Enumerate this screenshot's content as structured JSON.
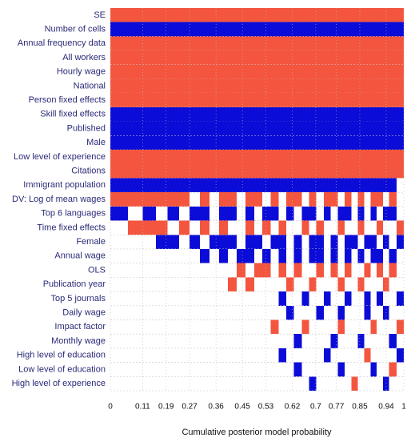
{
  "chart_data": {
    "type": "bma-image",
    "xlabel": "Cumulative posterior model probability",
    "xlim": [
      0,
      1
    ],
    "xticks": [
      0,
      0.11,
      0.19,
      0.27,
      0.36,
      0.45,
      0.53,
      0.62,
      0.7,
      0.77,
      0.85,
      0.94,
      1
    ],
    "pos_color": "#f4553f",
    "neg_color": "#0c0cd8",
    "pmp": [
      0.06,
      0.05,
      0.045,
      0.04,
      0.04,
      0.035,
      0.035,
      0.033,
      0.032,
      0.031,
      0.03,
      0.03,
      0.029,
      0.028,
      0.028,
      0.027,
      0.027,
      0.026,
      0.026,
      0.025,
      0.025,
      0.025,
      0.024,
      0.024,
      0.023,
      0.023,
      0.022,
      0.022,
      0.022,
      0.021,
      0.021,
      0.021,
      0.025,
      0.025
    ],
    "series": [
      {
        "name": "SE",
        "values": [
          1,
          1,
          1,
          1,
          1,
          1,
          1,
          1,
          1,
          1,
          1,
          1,
          1,
          1,
          1,
          1,
          1,
          1,
          1,
          1,
          1,
          1,
          1,
          1,
          1,
          1,
          1,
          1,
          1,
          1,
          1,
          1,
          1,
          1
        ]
      },
      {
        "name": "Number of cells",
        "values": [
          -1,
          -1,
          -1,
          -1,
          -1,
          -1,
          -1,
          -1,
          -1,
          -1,
          -1,
          -1,
          -1,
          -1,
          -1,
          -1,
          -1,
          -1,
          -1,
          -1,
          -1,
          -1,
          -1,
          -1,
          -1,
          -1,
          -1,
          -1,
          -1,
          -1,
          -1,
          -1,
          -1,
          -1
        ]
      },
      {
        "name": "Annual frequency data",
        "values": [
          1,
          1,
          1,
          1,
          1,
          1,
          1,
          1,
          1,
          1,
          1,
          1,
          1,
          1,
          1,
          1,
          1,
          1,
          1,
          1,
          1,
          1,
          1,
          1,
          1,
          1,
          1,
          1,
          1,
          1,
          1,
          1,
          1,
          1
        ]
      },
      {
        "name": "All workers",
        "values": [
          1,
          1,
          1,
          1,
          1,
          1,
          1,
          1,
          1,
          1,
          1,
          1,
          1,
          1,
          1,
          1,
          1,
          1,
          1,
          1,
          1,
          1,
          1,
          1,
          1,
          1,
          1,
          1,
          1,
          1,
          1,
          1,
          1,
          1
        ]
      },
      {
        "name": "Hourly wage",
        "values": [
          1,
          1,
          1,
          1,
          1,
          1,
          1,
          1,
          1,
          1,
          1,
          1,
          1,
          1,
          1,
          1,
          1,
          1,
          1,
          1,
          1,
          1,
          1,
          1,
          1,
          1,
          1,
          1,
          1,
          1,
          1,
          1,
          1,
          1
        ]
      },
      {
        "name": "National",
        "values": [
          1,
          1,
          1,
          1,
          1,
          1,
          1,
          1,
          1,
          1,
          1,
          1,
          1,
          1,
          1,
          1,
          1,
          1,
          1,
          1,
          1,
          1,
          1,
          1,
          1,
          1,
          1,
          1,
          1,
          1,
          1,
          1,
          1,
          1
        ]
      },
      {
        "name": "Person fixed effects",
        "values": [
          1,
          1,
          1,
          1,
          1,
          1,
          1,
          1,
          1,
          1,
          1,
          1,
          1,
          1,
          1,
          1,
          1,
          1,
          1,
          1,
          1,
          1,
          1,
          1,
          1,
          1,
          1,
          1,
          1,
          1,
          1,
          1,
          1,
          1
        ]
      },
      {
        "name": "Skill fixed effects",
        "values": [
          -1,
          -1,
          -1,
          -1,
          -1,
          -1,
          -1,
          -1,
          -1,
          -1,
          -1,
          -1,
          -1,
          -1,
          -1,
          -1,
          -1,
          -1,
          -1,
          -1,
          -1,
          -1,
          -1,
          -1,
          -1,
          -1,
          -1,
          -1,
          -1,
          -1,
          -1,
          -1,
          -1,
          -1
        ]
      },
      {
        "name": "Published",
        "values": [
          -1,
          -1,
          -1,
          -1,
          -1,
          -1,
          -1,
          -1,
          -1,
          -1,
          -1,
          -1,
          -1,
          -1,
          -1,
          -1,
          -1,
          -1,
          -1,
          -1,
          -1,
          -1,
          -1,
          -1,
          -1,
          -1,
          -1,
          -1,
          -1,
          -1,
          -1,
          -1,
          -1,
          -1
        ]
      },
      {
        "name": "Male",
        "values": [
          -1,
          -1,
          -1,
          -1,
          -1,
          -1,
          -1,
          -1,
          -1,
          -1,
          -1,
          -1,
          -1,
          -1,
          -1,
          -1,
          -1,
          -1,
          -1,
          -1,
          -1,
          -1,
          -1,
          -1,
          -1,
          -1,
          -1,
          -1,
          -1,
          -1,
          -1,
          -1,
          -1,
          -1
        ]
      },
      {
        "name": "Low level of experience",
        "values": [
          1,
          1,
          1,
          1,
          1,
          1,
          1,
          1,
          1,
          1,
          1,
          1,
          1,
          1,
          1,
          1,
          1,
          1,
          1,
          1,
          1,
          1,
          1,
          1,
          1,
          1,
          1,
          1,
          1,
          1,
          1,
          1,
          1,
          1
        ]
      },
      {
        "name": "Citations",
        "values": [
          1,
          1,
          1,
          1,
          1,
          1,
          1,
          1,
          1,
          1,
          1,
          1,
          1,
          1,
          1,
          1,
          1,
          1,
          1,
          1,
          1,
          1,
          1,
          1,
          1,
          1,
          1,
          1,
          1,
          1,
          1,
          1,
          1,
          1
        ]
      },
      {
        "name": "Immigrant population",
        "values": [
          -1,
          -1,
          -1,
          -1,
          -1,
          -1,
          -1,
          -1,
          -1,
          -1,
          -1,
          -1,
          -1,
          -1,
          -1,
          -1,
          -1,
          -1,
          -1,
          -1,
          -1,
          -1,
          -1,
          -1,
          -1,
          -1,
          -1,
          -1,
          -1,
          -1,
          -1,
          -1,
          -1,
          0
        ]
      },
      {
        "name": "DV: Log of mean wages",
        "values": [
          1,
          1,
          1,
          1,
          1,
          1,
          0,
          1,
          0,
          1,
          1,
          0,
          1,
          1,
          0,
          1,
          0,
          1,
          1,
          0,
          1,
          0,
          1,
          1,
          0,
          1,
          0,
          1,
          0,
          1,
          1,
          0,
          1,
          0
        ]
      },
      {
        "name": "Top 6 languages",
        "values": [
          -1,
          0,
          -1,
          0,
          -1,
          0,
          -1,
          -1,
          0,
          -1,
          -1,
          0,
          -1,
          0,
          -1,
          -1,
          0,
          -1,
          0,
          -1,
          -1,
          0,
          -1,
          0,
          -1,
          -1,
          0,
          -1,
          0,
          -1,
          0,
          -1,
          -1,
          0
        ]
      },
      {
        "name": "Time fixed effects",
        "values": [
          0,
          1,
          1,
          1,
          0,
          1,
          0,
          1,
          0,
          1,
          0,
          0,
          1,
          0,
          1,
          0,
          1,
          0,
          0,
          1,
          0,
          1,
          0,
          0,
          1,
          0,
          0,
          1,
          0,
          0,
          1,
          0,
          0,
          1
        ]
      },
      {
        "name": "Female",
        "values": [
          0,
          0,
          0,
          -1,
          -1,
          0,
          -1,
          0,
          -1,
          -1,
          -1,
          0,
          -1,
          -1,
          0,
          -1,
          -1,
          0,
          -1,
          0,
          -1,
          -1,
          0,
          -1,
          0,
          -1,
          -1,
          0,
          -1,
          -1,
          0,
          -1,
          0,
          -1
        ]
      },
      {
        "name": "Annual wage",
        "values": [
          0,
          0,
          0,
          0,
          0,
          0,
          0,
          -1,
          0,
          -1,
          0,
          -1,
          -1,
          0,
          -1,
          0,
          -1,
          0,
          -1,
          0,
          -1,
          -1,
          0,
          -1,
          0,
          -1,
          0,
          -1,
          0,
          -1,
          -1,
          0,
          -1,
          0
        ]
      },
      {
        "name": "OLS",
        "values": [
          0,
          0,
          0,
          0,
          0,
          0,
          0,
          0,
          0,
          0,
          0,
          1,
          0,
          1,
          1,
          0,
          1,
          0,
          1,
          0,
          0,
          1,
          0,
          1,
          0,
          1,
          0,
          0,
          1,
          0,
          1,
          0,
          1,
          0
        ]
      },
      {
        "name": "Publication year",
        "values": [
          0,
          0,
          0,
          0,
          0,
          0,
          0,
          0,
          0,
          0,
          1,
          0,
          1,
          0,
          0,
          0,
          0,
          1,
          0,
          0,
          1,
          0,
          0,
          0,
          1,
          0,
          0,
          1,
          0,
          0,
          0,
          1,
          0,
          0
        ]
      },
      {
        "name": "Top 5 journals",
        "values": [
          0,
          0,
          0,
          0,
          0,
          0,
          0,
          0,
          0,
          0,
          0,
          0,
          0,
          0,
          0,
          0,
          -1,
          0,
          0,
          -1,
          0,
          0,
          -1,
          0,
          0,
          -1,
          0,
          0,
          -1,
          0,
          -1,
          0,
          0,
          -1
        ]
      },
      {
        "name": "Daily wage",
        "values": [
          0,
          0,
          0,
          0,
          0,
          0,
          0,
          0,
          0,
          0,
          0,
          0,
          0,
          0,
          0,
          0,
          0,
          -1,
          0,
          0,
          0,
          -1,
          0,
          0,
          -1,
          0,
          0,
          0,
          -1,
          0,
          0,
          -1,
          0,
          0
        ]
      },
      {
        "name": "Impact factor",
        "values": [
          0,
          0,
          0,
          0,
          0,
          0,
          0,
          0,
          0,
          0,
          0,
          0,
          0,
          0,
          0,
          1,
          0,
          0,
          0,
          1,
          0,
          0,
          0,
          0,
          1,
          0,
          0,
          0,
          0,
          1,
          0,
          0,
          0,
          1
        ]
      },
      {
        "name": "Monthly wage",
        "values": [
          0,
          0,
          0,
          0,
          0,
          0,
          0,
          0,
          0,
          0,
          0,
          0,
          0,
          0,
          0,
          0,
          0,
          0,
          -1,
          0,
          0,
          0,
          0,
          -1,
          0,
          0,
          0,
          -1,
          0,
          0,
          0,
          0,
          -1,
          0
        ]
      },
      {
        "name": "High level of education",
        "values": [
          0,
          0,
          0,
          0,
          0,
          0,
          0,
          0,
          0,
          0,
          0,
          0,
          0,
          0,
          0,
          0,
          -1,
          0,
          0,
          0,
          0,
          0,
          -1,
          0,
          0,
          0,
          0,
          0,
          1,
          0,
          0,
          0,
          0,
          -1
        ]
      },
      {
        "name": "Low level of education",
        "values": [
          0,
          0,
          0,
          0,
          0,
          0,
          0,
          0,
          0,
          0,
          0,
          0,
          0,
          0,
          0,
          0,
          0,
          0,
          -1,
          0,
          0,
          0,
          0,
          0,
          -1,
          0,
          0,
          0,
          0,
          -1,
          0,
          0,
          1,
          0
        ]
      },
      {
        "name": "High level of experience",
        "values": [
          0,
          0,
          0,
          0,
          0,
          0,
          0,
          0,
          0,
          0,
          0,
          0,
          0,
          0,
          0,
          0,
          0,
          0,
          0,
          0,
          -1,
          0,
          0,
          0,
          0,
          0,
          1,
          0,
          0,
          0,
          0,
          -1,
          0,
          0
        ]
      }
    ]
  }
}
